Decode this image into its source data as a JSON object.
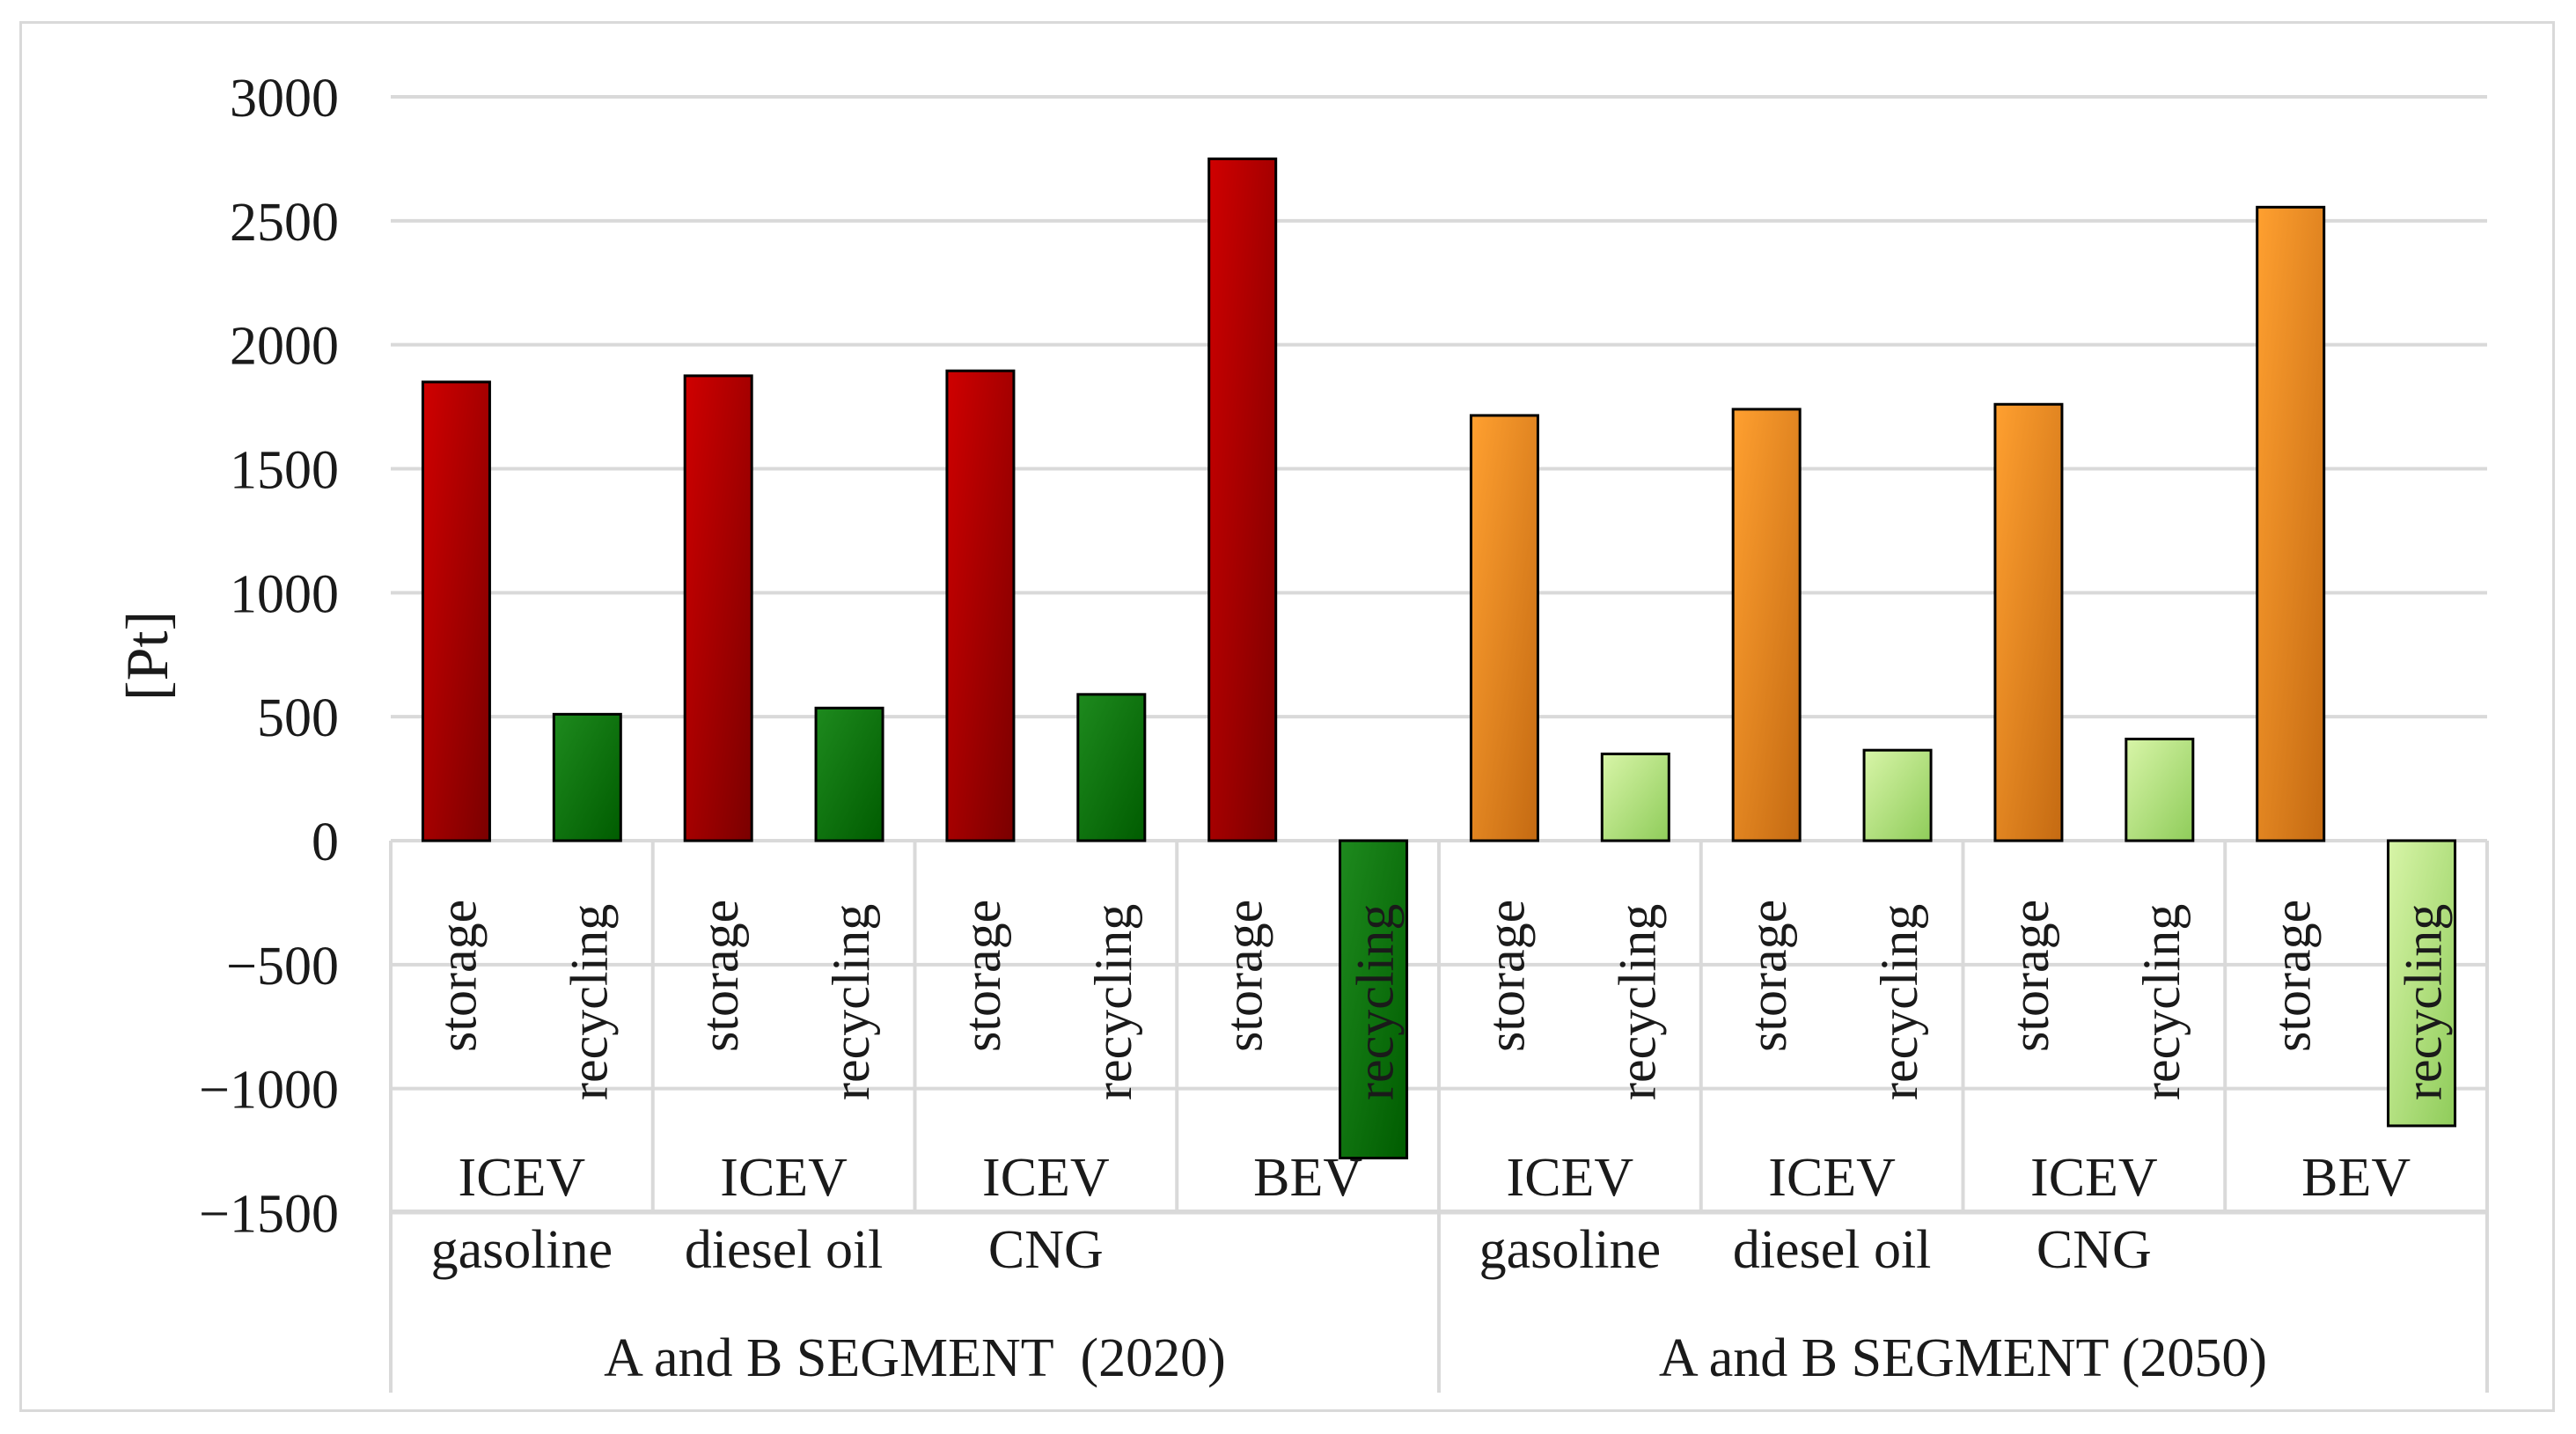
{
  "chart_data": {
    "type": "bar",
    "title": "",
    "ylabel": "[Pt]",
    "xlabel": "",
    "ylim": [
      -1500,
      3000
    ],
    "yticks": [
      3000,
      2500,
      2000,
      1500,
      1000,
      500,
      0,
      -500,
      -1000,
      -1500
    ],
    "ytick_labels": [
      "3000",
      "2500",
      "2000",
      "1500",
      "1000",
      "500",
      "0",
      "−500",
      "−1000",
      "−1500"
    ],
    "grid": true,
    "colors": {
      "storage_2020": [
        "#d00000",
        "#7a0000"
      ],
      "recycling_2020": [
        "#1e8a1e",
        "#005c00"
      ],
      "storage_2050": [
        "#ffa030",
        "#c46a12"
      ],
      "recycling_2050": [
        "#d8f5a8",
        "#8fcc5a"
      ],
      "grid": "#d9d9d9",
      "bar_border": "#000000"
    },
    "segments": [
      {
        "label": "A and B SEGMENT  (2020)",
        "period": "2020",
        "groups": [
          {
            "line1": "ICEV",
            "line2": "gasoline",
            "bars": [
              {
                "label": "storage",
                "value": 1850
              },
              {
                "label": "recycling",
                "value": 510
              }
            ]
          },
          {
            "line1": "ICEV",
            "line2": "diesel oil",
            "bars": [
              {
                "label": "storage",
                "value": 1875
              },
              {
                "label": "recycling",
                "value": 535
              }
            ]
          },
          {
            "line1": "ICEV",
            "line2": "CNG",
            "bars": [
              {
                "label": "storage",
                "value": 1895
              },
              {
                "label": "recycling",
                "value": 590
              }
            ]
          },
          {
            "line1": "BEV",
            "line2": "",
            "bars": [
              {
                "label": "storage",
                "value": 2750
              },
              {
                "label": "recycling",
                "value": -1280
              }
            ]
          }
        ]
      },
      {
        "label": "A and B SEGMENT (2050)",
        "period": "2050",
        "groups": [
          {
            "line1": "ICEV",
            "line2": "gasoline",
            "bars": [
              {
                "label": "storage",
                "value": 1715
              },
              {
                "label": "recycling",
                "value": 350
              }
            ]
          },
          {
            "line1": "ICEV",
            "line2": "diesel oil",
            "bars": [
              {
                "label": "storage",
                "value": 1740
              },
              {
                "label": "recycling",
                "value": 365
              }
            ]
          },
          {
            "line1": "ICEV",
            "line2": "CNG",
            "bars": [
              {
                "label": "storage",
                "value": 1760
              },
              {
                "label": "recycling",
                "value": 410
              }
            ]
          },
          {
            "line1": "BEV",
            "line2": "",
            "bars": [
              {
                "label": "storage",
                "value": 2555
              },
              {
                "label": "recycling",
                "value": -1150
              }
            ]
          }
        ]
      }
    ]
  }
}
